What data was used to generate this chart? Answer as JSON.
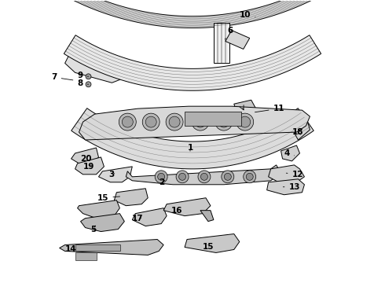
{
  "bg_color": "#ffffff",
  "line_color": "#000000",
  "label_configs": [
    [
      "10",
      305,
      18,
      328,
      22,
      "left"
    ],
    [
      "6",
      290,
      38,
      285,
      52,
      "left"
    ],
    [
      "7",
      72,
      98,
      95,
      102,
      "right"
    ],
    [
      "9",
      98,
      96,
      112,
      97,
      "left"
    ],
    [
      "8",
      98,
      106,
      112,
      107,
      "left"
    ],
    [
      "11",
      348,
      138,
      322,
      143,
      "left"
    ],
    [
      "18",
      372,
      168,
      385,
      173,
      "left"
    ],
    [
      "4",
      362,
      195,
      375,
      198,
      "left"
    ],
    [
      "12",
      372,
      222,
      362,
      220,
      "left"
    ],
    [
      "13",
      368,
      238,
      358,
      238,
      "left"
    ],
    [
      "1",
      242,
      188,
      242,
      195,
      "center"
    ],
    [
      "2",
      202,
      232,
      212,
      228,
      "left"
    ],
    [
      "3",
      138,
      222,
      148,
      220,
      "left"
    ],
    [
      "20",
      102,
      202,
      112,
      198,
      "left"
    ],
    [
      "19",
      105,
      212,
      115,
      210,
      "left"
    ],
    [
      "15",
      138,
      252,
      155,
      250,
      "right"
    ],
    [
      "16",
      218,
      268,
      230,
      265,
      "left"
    ],
    [
      "17",
      168,
      278,
      182,
      278,
      "left"
    ],
    [
      "5",
      115,
      292,
      122,
      285,
      "left"
    ],
    [
      "14",
      82,
      318,
      98,
      318,
      "left"
    ],
    [
      "15",
      258,
      315,
      265,
      312,
      "left"
    ]
  ]
}
